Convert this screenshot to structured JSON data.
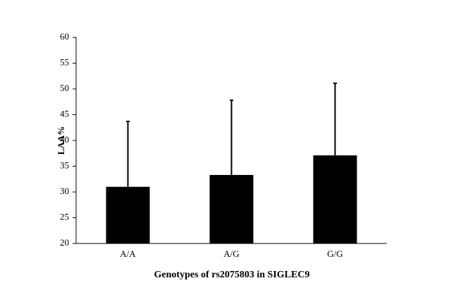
{
  "chart_data": {
    "type": "bar",
    "categories": [
      "A/A",
      "A/G",
      "G/G"
    ],
    "values": [
      31.0,
      33.3,
      37.1
    ],
    "errors": [
      12.7,
      14.5,
      14.0
    ],
    "color": "#000000",
    "ylabel": "LAA%",
    "xlabel": "Genotypes of rs2075803 in SIGLEC9",
    "ylim": [
      20,
      60
    ],
    "yticks": [
      20,
      25,
      30,
      35,
      40,
      45,
      50,
      55,
      60
    ],
    "grid": false
  }
}
